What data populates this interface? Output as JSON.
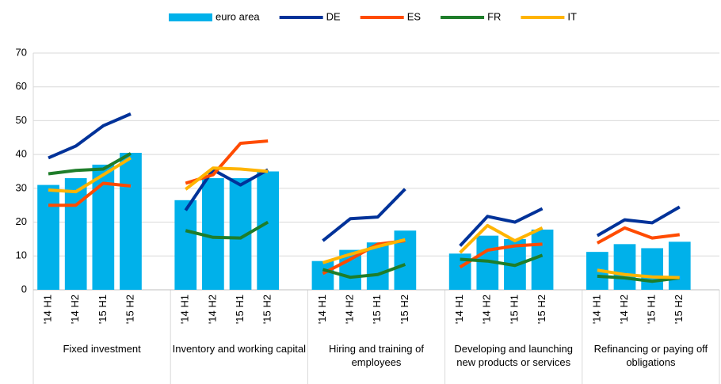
{
  "chart_data": {
    "type": "bar",
    "groups": [
      "Fixed investment",
      "Inventory and working capital",
      "Hiring and training of employees",
      "Developing and launching new products or services",
      "Refinancing or paying off obligations"
    ],
    "categories": [
      "'14 H1",
      "'14 H2",
      "'15 H1",
      "'15 H2",
      "'14 H1",
      "'14 H2",
      "'15 H1",
      "'15 H2",
      "'14 H1",
      "'14 H2",
      "'15 H1",
      "'15 H2",
      "'14 H1",
      "'14 H2",
      "'15 H1",
      "'15 H2",
      "'14 H1",
      "'14 H2",
      "'15 H1",
      "'15 H2"
    ],
    "series": [
      {
        "name": "euro area",
        "type": "bar",
        "color": "#00b1ea",
        "values": [
          31,
          33,
          37,
          40.5,
          26.5,
          33,
          33,
          35,
          8.5,
          11.8,
          14,
          17.5,
          10.7,
          16,
          15,
          17.8,
          11.2,
          13.5,
          12.3,
          14.2
        ]
      },
      {
        "name": "DE",
        "type": "line",
        "color": "#003299",
        "values": [
          39,
          42.5,
          48.5,
          52,
          23.5,
          35.5,
          31,
          35.5,
          14.5,
          21,
          21.5,
          29.8,
          13,
          21.7,
          20,
          24,
          16,
          20.7,
          19.8,
          24.5
        ]
      },
      {
        "name": "ES",
        "type": "line",
        "color": "#ff4b00",
        "values": [
          25,
          25,
          31.5,
          30.7,
          31.5,
          34,
          43.3,
          44,
          4.8,
          9,
          13.5,
          14.5,
          6.7,
          11.7,
          13,
          13.5,
          13.8,
          18.3,
          15.3,
          16.3
        ]
      },
      {
        "name": "FR",
        "type": "line",
        "color": "#1e7d2a",
        "values": [
          34.3,
          35.3,
          35.7,
          40.3,
          17.5,
          15.5,
          15.3,
          20,
          6,
          3.7,
          4.5,
          7.5,
          9,
          8.5,
          7.2,
          10.2,
          4,
          3.5,
          2.5,
          3.5
        ]
      },
      {
        "name": "IT",
        "type": "line",
        "color": "#ffb400",
        "values": [
          29.5,
          29,
          34,
          39,
          29.7,
          36,
          35.7,
          35,
          8,
          10.5,
          12.8,
          14.8,
          11,
          19,
          14.5,
          18.3,
          5.8,
          4.5,
          3.8,
          3.6
        ]
      }
    ],
    "ylim": [
      0,
      70
    ],
    "yticks": [
      0,
      10,
      20,
      30,
      40,
      50,
      60,
      70
    ],
    "grid": true,
    "legend": "top"
  }
}
